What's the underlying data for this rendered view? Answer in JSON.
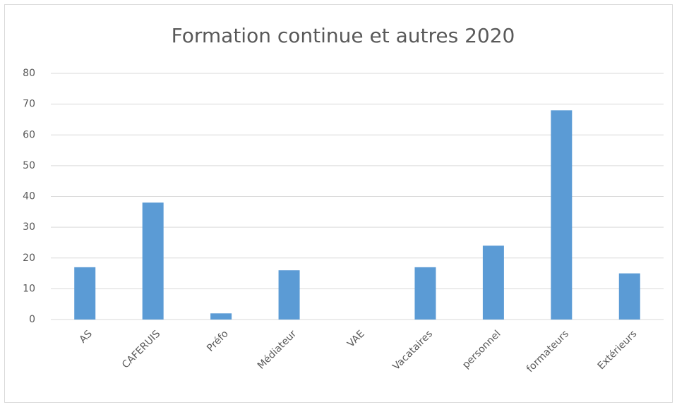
{
  "chart_data": {
    "type": "bar",
    "title": "Formation continue et autres 2020",
    "categories": [
      "AS",
      "CAFERUIS",
      "Préfo",
      "Médiateur",
      "VAE",
      "Vacataires",
      "personnel",
      "formateurs",
      "Extérieurs"
    ],
    "values": [
      17,
      38,
      2,
      16,
      0,
      17,
      24,
      68,
      15
    ],
    "color": "#5b9bd5",
    "ylim": [
      0,
      80
    ],
    "yticks": [
      0,
      10,
      20,
      30,
      40,
      50,
      60,
      70,
      80
    ],
    "grid": true
  }
}
